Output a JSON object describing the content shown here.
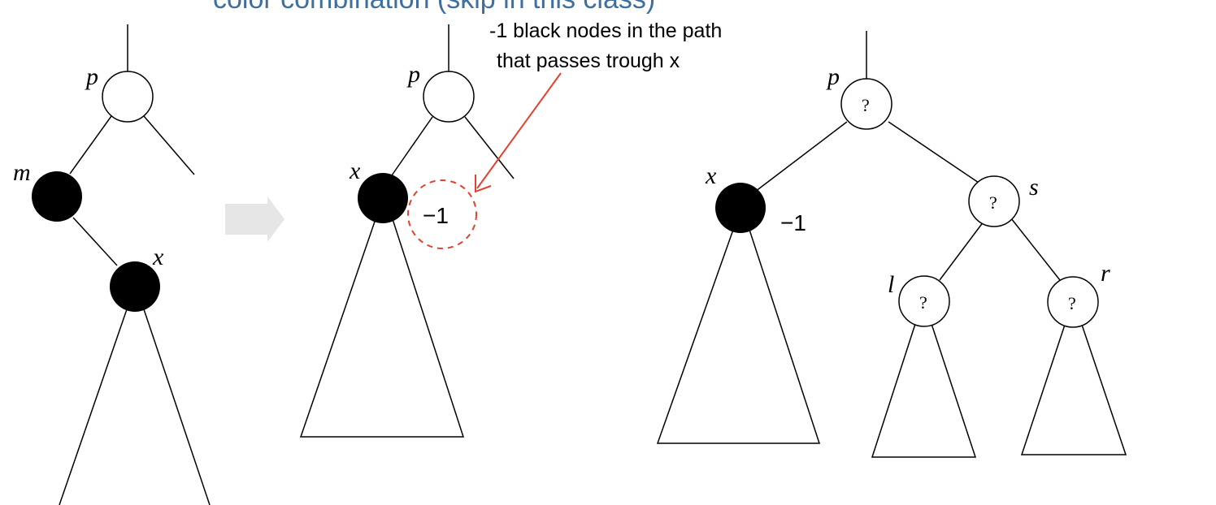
{
  "heading": "color combination (skip in this class)",
  "annotation": {
    "line1": "-1 black nodes in the path",
    "line2": "that passes trough x"
  },
  "labels": {
    "p": "p",
    "m": "m",
    "x": "x",
    "s": "s",
    "l": "l",
    "r": "r"
  },
  "unknown_color_mark": "?",
  "deficit_mark": "−1",
  "colors": {
    "heading": "#3f6f9f",
    "black_node": "#000000",
    "white_node": "#ffffff",
    "annotation_arrow": "#e2412f",
    "transition_arrow": "#e6e6e6"
  },
  "icons": {
    "transition": "right-arrow-icon",
    "pointer": "red-arrow-icon"
  }
}
